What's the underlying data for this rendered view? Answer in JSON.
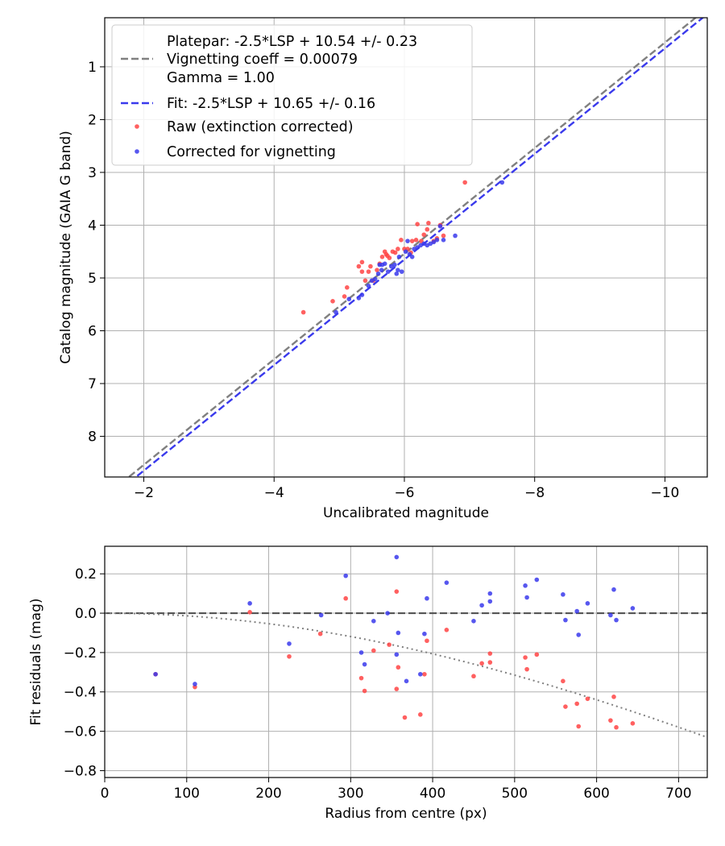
{
  "chart_data": [
    {
      "type": "scatter",
      "name": "calibration",
      "xlabel": "Uncalibrated magnitude",
      "ylabel": "Catalog magnitude (GAIA G band)",
      "xlim": [
        -1.4,
        -10.65
      ],
      "ylim": [
        8.77,
        0.07
      ],
      "x_ticks": [
        -2,
        -4,
        -6,
        -8,
        -10
      ],
      "x_tick_labels": [
        "−2",
        "−4",
        "−6",
        "−8",
        "−10"
      ],
      "y_ticks": [
        1,
        2,
        3,
        4,
        5,
        6,
        7,
        8
      ],
      "y_tick_labels": [
        "1",
        "2",
        "3",
        "4",
        "5",
        "6",
        "7",
        "8"
      ],
      "grid": true,
      "legend": {
        "placement": "top-left",
        "entries": [
          {
            "label": "Platepar: -2.5*LSP + 10.54 +/- 0.23",
            "color": "#808080",
            "marker": "dashed-line"
          },
          {
            "label": "Vignetting coeff = 0.00079"
          },
          {
            "label": "Gamma = 1.00"
          },
          {
            "label": "Fit: -2.5*LSP + 10.65 +/- 0.16",
            "color": "#3a3aec",
            "marker": "dashed-line"
          },
          {
            "label": "Raw (extinction corrected)",
            "color": "#ff4444",
            "marker": "dot"
          },
          {
            "label": "Corrected for vignetting",
            "color": "#3a3aec",
            "marker": "dot"
          }
        ]
      },
      "lines": [
        {
          "name": "Platepar",
          "offset": 10.54,
          "slope": 1,
          "color": "#808080"
        },
        {
          "name": "Fit",
          "offset": 10.65,
          "slope": 1,
          "color": "#3a3aec"
        }
      ],
      "series": [
        {
          "name": "Raw (extinction corrected)",
          "color": "#ff4444",
          "points": [
            [
              -6.93,
              3.19
            ],
            [
              -4.45,
              5.65
            ],
            [
              -4.9,
              5.44
            ],
            [
              -5.08,
              5.35
            ],
            [
              -5.12,
              5.18
            ],
            [
              -5.3,
              4.78
            ],
            [
              -5.35,
              4.88
            ],
            [
              -5.35,
              4.7
            ],
            [
              -5.4,
              5.05
            ],
            [
              -5.45,
              4.88
            ],
            [
              -5.48,
              4.78
            ],
            [
              -5.52,
              5.05
            ],
            [
              -5.58,
              4.85
            ],
            [
              -5.62,
              4.73
            ],
            [
              -5.66,
              4.6
            ],
            [
              -5.7,
              4.5
            ],
            [
              -5.72,
              4.55
            ],
            [
              -5.74,
              4.58
            ],
            [
              -5.77,
              4.62
            ],
            [
              -5.82,
              4.5
            ],
            [
              -5.86,
              4.52
            ],
            [
              -5.9,
              4.45
            ],
            [
              -5.95,
              4.28
            ],
            [
              -6.0,
              4.45
            ],
            [
              -6.05,
              4.45
            ],
            [
              -6.1,
              4.52
            ],
            [
              -6.12,
              4.3
            ],
            [
              -6.18,
              4.28
            ],
            [
              -6.2,
              3.98
            ],
            [
              -6.26,
              4.3
            ],
            [
              -6.3,
              4.18
            ],
            [
              -6.35,
              4.08
            ],
            [
              -6.37,
              3.96
            ],
            [
              -6.45,
              4.3
            ],
            [
              -6.5,
              4.25
            ],
            [
              -6.55,
              4.0
            ],
            [
              -6.6,
              4.2
            ]
          ]
        },
        {
          "name": "Corrected for vignetting",
          "color": "#3a3aec",
          "points": [
            [
              -7.5,
              3.19
            ],
            [
              -4.95,
              5.65
            ],
            [
              -5.15,
              5.4
            ],
            [
              -5.3,
              5.38
            ],
            [
              -5.35,
              5.32
            ],
            [
              -5.45,
              5.15
            ],
            [
              -5.5,
              5.05
            ],
            [
              -5.55,
              5.02
            ],
            [
              -5.6,
              4.92
            ],
            [
              -5.65,
              4.85
            ],
            [
              -5.7,
              4.73
            ],
            [
              -5.75,
              4.88
            ],
            [
              -5.8,
              4.78
            ],
            [
              -5.85,
              4.75
            ],
            [
              -5.88,
              4.92
            ],
            [
              -5.9,
              4.85
            ],
            [
              -5.92,
              4.6
            ],
            [
              -5.96,
              4.88
            ],
            [
              -6.02,
              4.5
            ],
            [
              -6.05,
              4.3
            ],
            [
              -6.08,
              4.55
            ],
            [
              -6.12,
              4.6
            ],
            [
              -6.15,
              4.45
            ],
            [
              -6.2,
              4.42
            ],
            [
              -6.25,
              4.38
            ],
            [
              -6.3,
              4.35
            ],
            [
              -6.35,
              4.38
            ],
            [
              -6.4,
              4.35
            ],
            [
              -6.45,
              4.32
            ],
            [
              -6.5,
              4.28
            ],
            [
              -6.55,
              4.02
            ],
            [
              -6.6,
              4.28
            ],
            [
              -6.78,
              4.2
            ],
            [
              -5.62,
              4.75
            ],
            [
              -5.66,
              4.75
            ]
          ]
        }
      ]
    },
    {
      "type": "scatter",
      "name": "residuals",
      "xlabel": "Radius from centre (px)",
      "ylabel": "Fit residuals (mag)",
      "xlim": [
        0,
        735
      ],
      "ylim": [
        -0.835,
        0.34
      ],
      "x_ticks": [
        0,
        100,
        200,
        300,
        400,
        500,
        600,
        700
      ],
      "x_tick_labels": [
        "0",
        "100",
        "200",
        "300",
        "400",
        "500",
        "600",
        "700"
      ],
      "y_ticks": [
        0.2,
        0.0,
        -0.2,
        -0.4,
        -0.6,
        -0.8
      ],
      "y_tick_labels": [
        "0.2",
        "0.0",
        "−0.2",
        "−0.4",
        "−0.6",
        "−0.8"
      ],
      "grid": true,
      "reference_line": {
        "name": "zero",
        "value": 0.0,
        "color": "#555555"
      },
      "vignetting_curve": {
        "name": "vignetting model",
        "coeff": 0.00079,
        "color": "#808080"
      },
      "series": [
        {
          "name": "Raw (extinction corrected)",
          "color": "#ff4444",
          "points": [
            [
              62,
              -0.31
            ],
            [
              110,
              -0.375
            ],
            [
              177,
              0.005
            ],
            [
              225,
              -0.22
            ],
            [
              263,
              -0.105
            ],
            [
              294,
              0.075
            ],
            [
              313,
              -0.33
            ],
            [
              317,
              -0.395
            ],
            [
              328,
              -0.19
            ],
            [
              347,
              -0.16
            ],
            [
              356,
              0.11
            ],
            [
              356,
              -0.385
            ],
            [
              358,
              -0.275
            ],
            [
              366,
              -0.53
            ],
            [
              385,
              -0.515
            ],
            [
              390,
              -0.31
            ],
            [
              393,
              -0.14
            ],
            [
              417,
              -0.085
            ],
            [
              450,
              -0.32
            ],
            [
              460,
              -0.255
            ],
            [
              470,
              -0.205
            ],
            [
              470,
              -0.25
            ],
            [
              513,
              -0.225
            ],
            [
              515,
              -0.285
            ],
            [
              527,
              -0.21
            ],
            [
              559,
              -0.345
            ],
            [
              562,
              -0.475
            ],
            [
              576,
              -0.46
            ],
            [
              578,
              -0.575
            ],
            [
              589,
              -0.435
            ],
            [
              617,
              -0.545
            ],
            [
              621,
              -0.425
            ],
            [
              624,
              -0.58
            ],
            [
              644,
              -0.56
            ]
          ]
        },
        {
          "name": "Corrected for vignetting",
          "color": "#3a3aec",
          "points": [
            [
              62,
              -0.31
            ],
            [
              110,
              -0.36
            ],
            [
              177,
              0.05
            ],
            [
              225,
              -0.155
            ],
            [
              264,
              -0.01
            ],
            [
              294,
              0.19
            ],
            [
              313,
              -0.2
            ],
            [
              317,
              -0.26
            ],
            [
              328,
              -0.04
            ],
            [
              345,
              0.0
            ],
            [
              356,
              0.285
            ],
            [
              356,
              -0.21
            ],
            [
              358,
              -0.1
            ],
            [
              368,
              -0.345
            ],
            [
              385,
              -0.31
            ],
            [
              390,
              -0.105
            ],
            [
              393,
              0.075
            ],
            [
              417,
              0.155
            ],
            [
              450,
              -0.04
            ],
            [
              460,
              0.04
            ],
            [
              470,
              0.1
            ],
            [
              470,
              0.06
            ],
            [
              513,
              0.14
            ],
            [
              515,
              0.08
            ],
            [
              527,
              0.17
            ],
            [
              559,
              0.095
            ],
            [
              562,
              -0.035
            ],
            [
              576,
              0.01
            ],
            [
              578,
              -0.11
            ],
            [
              589,
              0.05
            ],
            [
              617,
              -0.01
            ],
            [
              621,
              0.12
            ],
            [
              624,
              -0.035
            ],
            [
              644,
              0.025
            ]
          ]
        }
      ]
    }
  ]
}
